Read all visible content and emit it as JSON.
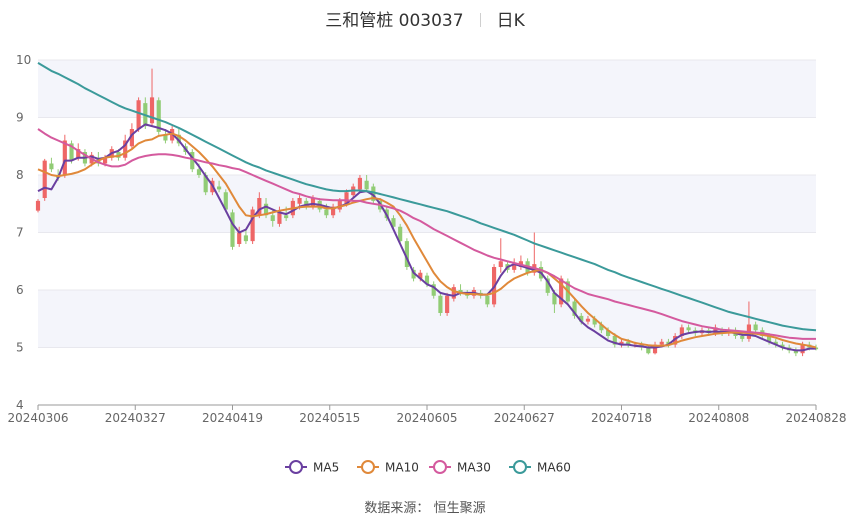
{
  "header": {
    "stock_title": "三和管桩 003037",
    "period": "日K"
  },
  "source_label": "数据来源：",
  "source_value": "恒生聚源",
  "colors": {
    "up": "#ee6666",
    "down": "#91cc75",
    "ma5": "#6a3fa0",
    "ma10": "#e0893a",
    "ma30": "#d45a9e",
    "ma60": "#3b9a9a",
    "grid": "#e8e8ee",
    "band": "#f4f5fb"
  },
  "chart_data": {
    "type": "candlestick",
    "title": "三和管桩 003037",
    "ylim": [
      4,
      10
    ],
    "yticks": [
      4,
      5,
      6,
      7,
      8,
      9,
      10
    ],
    "xticks": [
      "20240306",
      "20240327",
      "20240419",
      "20240515",
      "20240605",
      "20240627",
      "20240718",
      "20240808",
      "20240828"
    ],
    "legend": [
      "MA5",
      "MA10",
      "MA30",
      "MA60"
    ],
    "legend_position": "bottom",
    "candles": [
      [
        7.38,
        7.55,
        7.35,
        7.58
      ],
      [
        7.6,
        8.25,
        7.55,
        8.28
      ],
      [
        8.2,
        8.1,
        8.05,
        8.3
      ],
      [
        8.0,
        7.95,
        7.9,
        8.1
      ],
      [
        8.0,
        8.6,
        7.95,
        8.7
      ],
      [
        8.55,
        8.25,
        8.2,
        8.6
      ],
      [
        8.3,
        8.45,
        8.25,
        8.55
      ],
      [
        8.4,
        8.2,
        8.15,
        8.45
      ],
      [
        8.2,
        8.35,
        8.15,
        8.4
      ],
      [
        8.3,
        8.2,
        8.15,
        8.4
      ],
      [
        8.2,
        8.3,
        8.15,
        8.35
      ],
      [
        8.3,
        8.45,
        8.25,
        8.5
      ],
      [
        8.4,
        8.3,
        8.25,
        8.45
      ],
      [
        8.3,
        8.6,
        8.25,
        8.7
      ],
      [
        8.5,
        8.8,
        8.45,
        8.9
      ],
      [
        8.8,
        9.3,
        8.75,
        9.35
      ],
      [
        9.25,
        8.85,
        8.8,
        9.35
      ],
      [
        8.9,
        9.35,
        8.85,
        9.85
      ],
      [
        9.3,
        8.75,
        8.7,
        9.35
      ],
      [
        8.7,
        8.6,
        8.55,
        8.8
      ],
      [
        8.6,
        8.8,
        8.55,
        8.85
      ],
      [
        8.7,
        8.55,
        8.5,
        8.8
      ],
      [
        8.5,
        8.4,
        8.35,
        8.55
      ],
      [
        8.4,
        8.1,
        8.05,
        8.45
      ],
      [
        8.1,
        8.0,
        7.95,
        8.2
      ],
      [
        8.0,
        7.7,
        7.65,
        8.05
      ],
      [
        7.7,
        7.9,
        7.65,
        7.95
      ],
      [
        7.8,
        7.75,
        7.7,
        7.9
      ],
      [
        7.7,
        7.4,
        7.35,
        7.75
      ],
      [
        7.35,
        6.75,
        6.7,
        7.4
      ],
      [
        6.8,
        7.0,
        6.75,
        7.1
      ],
      [
        6.95,
        6.85,
        6.8,
        7.05
      ],
      [
        6.85,
        7.4,
        6.8,
        7.45
      ],
      [
        7.3,
        7.6,
        7.25,
        7.7
      ],
      [
        7.5,
        7.3,
        7.25,
        7.6
      ],
      [
        7.3,
        7.2,
        7.1,
        7.4
      ],
      [
        7.15,
        7.35,
        7.1,
        7.45
      ],
      [
        7.3,
        7.25,
        7.2,
        7.45
      ],
      [
        7.3,
        7.55,
        7.25,
        7.6
      ],
      [
        7.5,
        7.6,
        7.4,
        7.65
      ],
      [
        7.55,
        7.45,
        7.4,
        7.6
      ],
      [
        7.45,
        7.6,
        7.4,
        7.65
      ],
      [
        7.55,
        7.4,
        7.35,
        7.6
      ],
      [
        7.4,
        7.3,
        7.25,
        7.5
      ],
      [
        7.3,
        7.45,
        7.25,
        7.5
      ],
      [
        7.4,
        7.55,
        7.35,
        7.6
      ],
      [
        7.5,
        7.7,
        7.45,
        7.75
      ],
      [
        7.65,
        7.8,
        7.6,
        7.85
      ],
      [
        7.75,
        7.95,
        7.7,
        8.0
      ],
      [
        7.9,
        7.75,
        7.7,
        8.0
      ],
      [
        7.8,
        7.55,
        7.5,
        7.85
      ],
      [
        7.55,
        7.4,
        7.35,
        7.6
      ],
      [
        7.4,
        7.25,
        7.2,
        7.45
      ],
      [
        7.25,
        7.1,
        7.05,
        7.3
      ],
      [
        7.1,
        6.85,
        6.8,
        7.15
      ],
      [
        6.85,
        6.4,
        6.35,
        6.9
      ],
      [
        6.35,
        6.2,
        6.15,
        6.4
      ],
      [
        6.2,
        6.3,
        6.15,
        6.35
      ],
      [
        6.25,
        6.1,
        6.05,
        6.3
      ],
      [
        6.1,
        5.9,
        5.85,
        6.15
      ],
      [
        5.9,
        5.6,
        5.55,
        5.95
      ],
      [
        5.6,
        5.9,
        5.55,
        5.95
      ],
      [
        5.85,
        6.05,
        5.8,
        6.1
      ],
      [
        6.0,
        5.95,
        5.9,
        6.1
      ],
      [
        5.95,
        5.9,
        5.85,
        6.0
      ],
      [
        5.9,
        6.0,
        5.85,
        6.05
      ],
      [
        5.95,
        5.9,
        5.85,
        6.0
      ],
      [
        5.9,
        5.75,
        5.7,
        5.95
      ],
      [
        5.75,
        6.4,
        5.7,
        6.45
      ],
      [
        6.4,
        6.5,
        6.3,
        6.9
      ],
      [
        6.45,
        6.35,
        6.3,
        6.5
      ],
      [
        6.35,
        6.45,
        6.3,
        6.55
      ],
      [
        6.4,
        6.5,
        6.35,
        6.6
      ],
      [
        6.5,
        6.3,
        6.25,
        6.55
      ],
      [
        6.3,
        6.45,
        6.25,
        7.0
      ],
      [
        6.4,
        6.2,
        6.15,
        6.5
      ],
      [
        6.2,
        5.95,
        5.9,
        6.25
      ],
      [
        5.95,
        5.75,
        5.6,
        6.0
      ],
      [
        5.75,
        6.2,
        5.7,
        6.25
      ],
      [
        6.15,
        5.8,
        5.75,
        6.2
      ],
      [
        5.8,
        5.55,
        5.5,
        5.85
      ],
      [
        5.55,
        5.45,
        5.4,
        5.6
      ],
      [
        5.45,
        5.5,
        5.4,
        5.55
      ],
      [
        5.5,
        5.4,
        5.35,
        5.55
      ],
      [
        5.4,
        5.3,
        5.25,
        5.45
      ],
      [
        5.3,
        5.2,
        5.15,
        5.35
      ],
      [
        5.2,
        5.05,
        5.0,
        5.25
      ],
      [
        5.05,
        5.1,
        5.0,
        5.15
      ],
      [
        5.1,
        5.05,
        5.0,
        5.15
      ],
      [
        5.05,
        5.05,
        5.0,
        5.1
      ],
      [
        5.05,
        5.0,
        4.95,
        5.1
      ],
      [
        5.0,
        4.9,
        4.88,
        5.05
      ],
      [
        4.9,
        5.05,
        4.88,
        5.1
      ],
      [
        5.05,
        5.1,
        5.0,
        5.15
      ],
      [
        5.1,
        5.05,
        5.0,
        5.15
      ],
      [
        5.05,
        5.2,
        5.0,
        5.25
      ],
      [
        5.2,
        5.35,
        5.15,
        5.4
      ],
      [
        5.35,
        5.3,
        5.25,
        5.4
      ],
      [
        5.3,
        5.25,
        5.2,
        5.35
      ],
      [
        5.25,
        5.3,
        5.2,
        5.35
      ],
      [
        5.3,
        5.25,
        5.2,
        5.35
      ],
      [
        5.25,
        5.35,
        5.2,
        5.4
      ],
      [
        5.3,
        5.25,
        5.2,
        5.35
      ],
      [
        5.25,
        5.3,
        5.2,
        5.35
      ],
      [
        5.3,
        5.2,
        5.15,
        5.35
      ],
      [
        5.2,
        5.15,
        5.1,
        5.25
      ],
      [
        5.15,
        5.4,
        5.1,
        5.8
      ],
      [
        5.4,
        5.3,
        5.25,
        5.45
      ],
      [
        5.3,
        5.2,
        5.15,
        5.35
      ],
      [
        5.2,
        5.1,
        5.05,
        5.25
      ],
      [
        5.1,
        5.05,
        5.0,
        5.15
      ],
      [
        5.05,
        5.0,
        4.95,
        5.1
      ],
      [
        5.0,
        4.95,
        4.9,
        5.05
      ],
      [
        4.95,
        4.9,
        4.85,
        5.0
      ],
      [
        4.9,
        5.05,
        4.85,
        5.1
      ],
      [
        5.05,
        5.0,
        4.95,
        5.1
      ],
      [
        5.0,
        4.97,
        4.95,
        5.05
      ]
    ],
    "series": [
      {
        "name": "MA5",
        "values": [
          7.72,
          7.78,
          7.75,
          7.95,
          8.25,
          8.25,
          8.3,
          8.3,
          8.32,
          8.28,
          8.3,
          8.38,
          8.42,
          8.52,
          8.7,
          8.8,
          8.88,
          8.85,
          8.82,
          8.78,
          8.72,
          8.6,
          8.45,
          8.3,
          8.15,
          7.98,
          7.82,
          7.6,
          7.38,
          7.15,
          7.0,
          7.05,
          7.25,
          7.4,
          7.45,
          7.4,
          7.35,
          7.32,
          7.38,
          7.45,
          7.48,
          7.5,
          7.48,
          7.45,
          7.42,
          7.45,
          7.5,
          7.6,
          7.7,
          7.72,
          7.65,
          7.5,
          7.3,
          7.05,
          6.8,
          6.55,
          6.3,
          6.2,
          6.1,
          6.05,
          5.95,
          5.92,
          5.9,
          5.95,
          5.95,
          5.95,
          5.92,
          5.92,
          6.05,
          6.25,
          6.4,
          6.45,
          6.42,
          6.38,
          6.35,
          6.3,
          6.15,
          5.95,
          5.85,
          5.75,
          5.6,
          5.45,
          5.35,
          5.28,
          5.2,
          5.12,
          5.08,
          5.05,
          5.05,
          5.03,
          5.02,
          5.0,
          5.0,
          5.02,
          5.05,
          5.15,
          5.22,
          5.25,
          5.27,
          5.28,
          5.27,
          5.28,
          5.27,
          5.27,
          5.25,
          5.22,
          5.22,
          5.2,
          5.15,
          5.1,
          5.05,
          5.0,
          4.97,
          4.95,
          4.95,
          4.98,
          4.98
        ]
      },
      {
        "name": "MA10",
        "values": [
          8.1,
          8.05,
          8.0,
          7.98,
          8.0,
          8.02,
          8.05,
          8.1,
          8.18,
          8.25,
          8.3,
          8.32,
          8.33,
          8.38,
          8.45,
          8.55,
          8.6,
          8.62,
          8.68,
          8.7,
          8.72,
          8.68,
          8.6,
          8.5,
          8.4,
          8.28,
          8.15,
          8.0,
          7.85,
          7.65,
          7.45,
          7.3,
          7.28,
          7.3,
          7.32,
          7.35,
          7.38,
          7.4,
          7.42,
          7.44,
          7.45,
          7.45,
          7.45,
          7.42,
          7.42,
          7.45,
          7.48,
          7.52,
          7.55,
          7.58,
          7.6,
          7.58,
          7.52,
          7.45,
          7.3,
          7.12,
          6.9,
          6.7,
          6.5,
          6.3,
          6.15,
          6.05,
          5.98,
          5.95,
          5.93,
          5.93,
          5.92,
          5.92,
          5.95,
          6.02,
          6.12,
          6.2,
          6.25,
          6.3,
          6.33,
          6.35,
          6.3,
          6.2,
          6.1,
          5.98,
          5.85,
          5.72,
          5.6,
          5.5,
          5.4,
          5.3,
          5.22,
          5.15,
          5.12,
          5.08,
          5.06,
          5.04,
          5.03,
          5.03,
          5.04,
          5.08,
          5.12,
          5.15,
          5.18,
          5.2,
          5.22,
          5.24,
          5.25,
          5.26,
          5.26,
          5.26,
          5.25,
          5.24,
          5.22,
          5.2,
          5.17,
          5.13,
          5.1,
          5.07,
          5.05,
          5.03,
          5.0
        ]
      },
      {
        "name": "MA30",
        "values": [
          8.8,
          8.72,
          8.65,
          8.6,
          8.55,
          8.5,
          8.42,
          8.35,
          8.28,
          8.22,
          8.18,
          8.15,
          8.15,
          8.18,
          8.25,
          8.3,
          8.33,
          8.35,
          8.36,
          8.36,
          8.35,
          8.33,
          8.3,
          8.28,
          8.25,
          8.22,
          8.2,
          8.17,
          8.15,
          8.12,
          8.1,
          8.05,
          8.0,
          7.95,
          7.9,
          7.85,
          7.8,
          7.75,
          7.7,
          7.67,
          7.63,
          7.6,
          7.58,
          7.57,
          7.56,
          7.56,
          7.56,
          7.55,
          7.55,
          7.52,
          7.5,
          7.48,
          7.45,
          7.42,
          7.38,
          7.32,
          7.25,
          7.2,
          7.13,
          7.06,
          7.0,
          6.94,
          6.88,
          6.82,
          6.76,
          6.7,
          6.65,
          6.6,
          6.56,
          6.53,
          6.5,
          6.47,
          6.44,
          6.41,
          6.38,
          6.35,
          6.3,
          6.24,
          6.17,
          6.1,
          6.03,
          5.98,
          5.93,
          5.9,
          5.87,
          5.84,
          5.8,
          5.77,
          5.74,
          5.71,
          5.68,
          5.65,
          5.62,
          5.58,
          5.54,
          5.5,
          5.46,
          5.43,
          5.4,
          5.37,
          5.35,
          5.33,
          5.31,
          5.3,
          5.29,
          5.28,
          5.27,
          5.26,
          5.25,
          5.23,
          5.21,
          5.19,
          5.17,
          5.16,
          5.15,
          5.15,
          5.15
        ]
      },
      {
        "name": "MA60",
        "values": [
          9.95,
          9.88,
          9.81,
          9.76,
          9.7,
          9.64,
          9.58,
          9.51,
          9.45,
          9.39,
          9.33,
          9.27,
          9.21,
          9.16,
          9.12,
          9.08,
          9.04,
          9.0,
          8.96,
          8.92,
          8.87,
          8.82,
          8.76,
          8.7,
          8.64,
          8.58,
          8.52,
          8.46,
          8.4,
          8.34,
          8.28,
          8.22,
          8.17,
          8.13,
          8.08,
          8.04,
          8.0,
          7.96,
          7.92,
          7.88,
          7.84,
          7.81,
          7.78,
          7.75,
          7.73,
          7.72,
          7.72,
          7.73,
          7.73,
          7.72,
          7.7,
          7.67,
          7.64,
          7.61,
          7.58,
          7.55,
          7.52,
          7.49,
          7.46,
          7.43,
          7.4,
          7.37,
          7.33,
          7.29,
          7.25,
          7.21,
          7.16,
          7.12,
          7.08,
          7.04,
          7.0,
          6.96,
          6.91,
          6.86,
          6.81,
          6.77,
          6.73,
          6.69,
          6.65,
          6.61,
          6.57,
          6.53,
          6.49,
          6.45,
          6.4,
          6.35,
          6.31,
          6.26,
          6.22,
          6.18,
          6.14,
          6.1,
          6.06,
          6.02,
          5.98,
          5.94,
          5.9,
          5.86,
          5.82,
          5.78,
          5.74,
          5.7,
          5.66,
          5.62,
          5.59,
          5.56,
          5.53,
          5.5,
          5.47,
          5.44,
          5.41,
          5.38,
          5.36,
          5.34,
          5.32,
          5.31,
          5.3
        ]
      }
    ]
  }
}
